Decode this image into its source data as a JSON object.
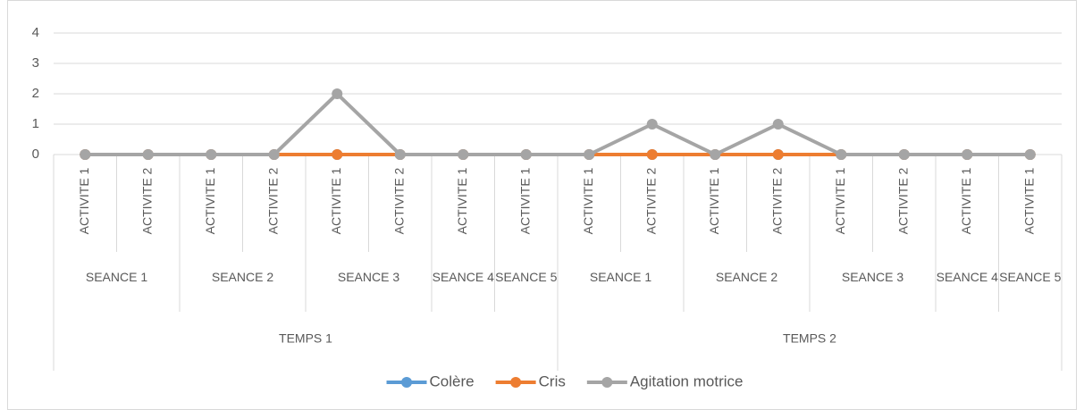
{
  "chart_data": {
    "type": "line",
    "category_groups": [
      {
        "label": "TEMPS 1",
        "groups": [
          {
            "label": "SEANCE 1",
            "categories": [
              "ACTIVITE 1",
              "ACTIVITE 2"
            ]
          },
          {
            "label": "SEANCE 2",
            "categories": [
              "ACTIVITE 1",
              "ACTIVITE 2"
            ]
          },
          {
            "label": "SEANCE 3",
            "categories": [
              "ACTIVITE 1",
              "ACTIVITE 2"
            ]
          },
          {
            "label": "SEANCE 4",
            "categories": [
              "ACTIVITE 1"
            ]
          },
          {
            "label": "SEANCE 5",
            "categories": [
              "ACTIVITE 1"
            ]
          }
        ]
      },
      {
        "label": "TEMPS 2",
        "groups": [
          {
            "label": "SEANCE 1",
            "categories": [
              "ACTIVITE 1",
              "ACTIVITE 2"
            ]
          },
          {
            "label": "SEANCE 2",
            "categories": [
              "ACTIVITE 1",
              "ACTIVITE 2"
            ]
          },
          {
            "label": "SEANCE 3",
            "categories": [
              "ACTIVITE 1",
              "ACTIVITE 2"
            ]
          },
          {
            "label": "SEANCE 4",
            "categories": [
              "ACTIVITE 1"
            ]
          },
          {
            "label": "SEANCE 5",
            "categories": [
              "ACTIVITE 1"
            ]
          }
        ]
      }
    ],
    "series": [
      {
        "name": "Colère",
        "color": "#5b9bd5",
        "values": [
          0,
          0,
          0,
          0,
          0,
          0,
          0,
          0,
          0,
          0,
          0,
          0,
          0,
          0,
          0,
          0
        ]
      },
      {
        "name": "Cris",
        "color": "#ed7d31",
        "values": [
          0,
          0,
          0,
          0,
          0,
          0,
          0,
          0,
          0,
          0,
          0,
          0,
          0,
          0,
          0,
          0
        ]
      },
      {
        "name": "Agitation motrice",
        "color": "#a5a5a5",
        "values": [
          0,
          0,
          0,
          0,
          2,
          0,
          0,
          0,
          0,
          1,
          0,
          1,
          0,
          0,
          0,
          0
        ]
      }
    ],
    "ylim": [
      0,
      4
    ],
    "yticks": [
      0,
      1,
      2,
      3,
      4
    ],
    "grid": true,
    "legend": "bottom"
  }
}
